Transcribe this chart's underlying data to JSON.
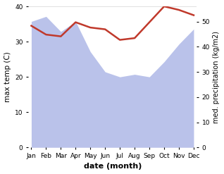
{
  "months": [
    "Jan",
    "Feb",
    "Mar",
    "Apr",
    "May",
    "Jun",
    "Jul",
    "Aug",
    "Sep",
    "Oct",
    "Nov",
    "Dec"
  ],
  "month_indices": [
    0,
    1,
    2,
    3,
    4,
    5,
    6,
    7,
    8,
    9,
    10,
    11
  ],
  "temperature": [
    34.5,
    32.0,
    31.5,
    35.5,
    34.0,
    33.5,
    30.5,
    31.0,
    35.5,
    40.0,
    39.0,
    37.5
  ],
  "rainfall": [
    50,
    52,
    46,
    50,
    38,
    30,
    28,
    29,
    28,
    34,
    41,
    47
  ],
  "temp_color": "#c0392b",
  "rainfall_color": "#b3bce8",
  "temp_ylim": [
    0,
    40
  ],
  "rain_ylim": [
    0,
    56
  ],
  "temp_yticks": [
    0,
    10,
    20,
    30,
    40
  ],
  "rain_yticks": [
    0,
    10,
    20,
    30,
    40,
    50
  ],
  "xlabel": "date (month)",
  "ylabel_left": "max temp (C)",
  "ylabel_right": "med. precipitation (kg/m2)",
  "bg_color": "#ffffff"
}
